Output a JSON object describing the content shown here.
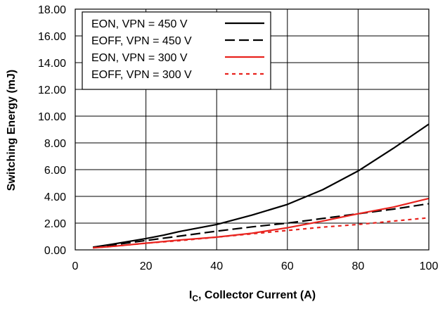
{
  "chart_data": {
    "type": "line",
    "xlabel_main": "I",
    "xlabel_sub": "C",
    "xlabel_rest": ", Collector Current (A)",
    "ylabel": "Switching Energy (mJ)",
    "xlim": [
      0,
      100
    ],
    "ylim": [
      0,
      18
    ],
    "x_ticks": [
      "0",
      "20",
      "40",
      "60",
      "80",
      "100"
    ],
    "y_ticks": [
      "0.00",
      "2.00",
      "4.00",
      "6.00",
      "8.00",
      "10.00",
      "12.00",
      "14.00",
      "16.00",
      "18.00"
    ],
    "grid": true,
    "legend_position": "top-left",
    "series": [
      {
        "name": "EON, VPN = 450 V",
        "color": "#000000",
        "dash": "solid",
        "x": [
          5,
          10,
          20,
          25,
          30,
          40,
          50,
          60,
          70,
          80,
          90,
          100
        ],
        "y": [
          0.2,
          0.4,
          0.85,
          1.1,
          1.4,
          1.9,
          2.6,
          3.4,
          4.5,
          5.9,
          7.6,
          9.4
        ]
      },
      {
        "name": "EOFF, VPN = 450 V",
        "color": "#000000",
        "dash": "long-dash",
        "x": [
          5,
          10,
          20,
          30,
          40,
          50,
          60,
          70,
          80,
          90,
          100
        ],
        "y": [
          0.2,
          0.35,
          0.7,
          1.05,
          1.4,
          1.72,
          2.0,
          2.35,
          2.7,
          3.05,
          3.45
        ]
      },
      {
        "name": "EON, VPN = 300 V",
        "color": "#e8231e",
        "dash": "solid",
        "x": [
          5,
          10,
          20,
          30,
          40,
          50,
          60,
          70,
          80,
          90,
          100
        ],
        "y": [
          0.15,
          0.25,
          0.5,
          0.75,
          0.95,
          1.25,
          1.65,
          2.15,
          2.7,
          3.2,
          3.85
        ]
      },
      {
        "name": "EOFF, VPN = 300 V",
        "color": "#e8231e",
        "dash": "short-dash",
        "x": [
          5,
          10,
          20,
          30,
          40,
          50,
          60,
          70,
          80,
          90,
          100
        ],
        "y": [
          0.15,
          0.25,
          0.5,
          0.7,
          0.95,
          1.2,
          1.45,
          1.7,
          1.9,
          2.15,
          2.4
        ]
      }
    ]
  }
}
